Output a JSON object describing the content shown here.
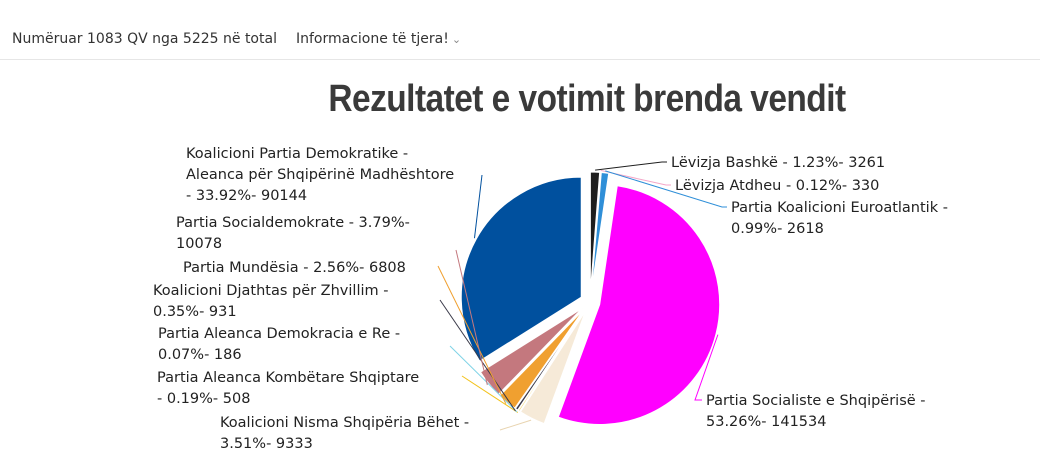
{
  "header": {
    "counted_text": "Numëruar 1083 QV nga 5225 në total",
    "more_info_label": "Informacione të tjera!",
    "more_info_icon": "chevron-down-icon"
  },
  "chart_data": {
    "type": "pie",
    "title": "Rezultatet e votimit brenda vendit",
    "slices": [
      {
        "name": "Lëvizja Bashkë",
        "percent": 1.23,
        "votes": 3261,
        "color": "#1e1e1e",
        "label": [
          "Lëvizja Bashkë - 1.23%- 3261"
        ]
      },
      {
        "name": "Lëvizja Atdheu",
        "percent": 0.12,
        "votes": 330,
        "color": "#f4a6c8",
        "label": [
          "Lëvizja Atdheu - 0.12%- 330"
        ]
      },
      {
        "name": "Partia Koalicioni Euroatlantik",
        "percent": 0.99,
        "votes": 2618,
        "color": "#2f8fd8",
        "label": [
          "Partia Koalicioni Euroatlantik -",
          "0.99%- 2618"
        ]
      },
      {
        "name": "Partia Socialiste e Shqipërisë",
        "percent": 53.26,
        "votes": 141534,
        "color": "#ff00ff",
        "label": [
          "Partia Socialiste e Shqipërisë -",
          "53.26%- 141534"
        ]
      },
      {
        "name": "Koalicioni Nisma Shqipëria Bëhet",
        "percent": 3.51,
        "votes": 9333,
        "color": "#f6ead8",
        "label": [
          "Koalicioni Nisma Shqipëria Bëhet -",
          "3.51%- 9333"
        ]
      },
      {
        "name": "Partia Aleanca Kombëtare Shqiptare",
        "percent": 0.19,
        "votes": 508,
        "color": "#f2c21b",
        "label": [
          "Partia Aleanca Kombëtare Shqiptare",
          "- 0.19%- 508"
        ]
      },
      {
        "name": "Partia Aleanca Demokracia e Re",
        "percent": 0.07,
        "votes": 186,
        "color": "#7fd3e6",
        "label": [
          "Partia Aleanca Demokracia e Re -",
          "0.07%- 186"
        ]
      },
      {
        "name": "Koalicioni Djathtas për Zhvillim",
        "percent": 0.35,
        "votes": 931,
        "color": "#3a3a4a",
        "label": [
          "Koalicioni Djathtas për Zhvillim -",
          "0.35%- 931"
        ]
      },
      {
        "name": "Partia Mundësia",
        "percent": 2.56,
        "votes": 6808,
        "color": "#f0a030",
        "label": [
          "Partia Mundësia - 2.56%- 6808"
        ]
      },
      {
        "name": "Partia Socialdemokrate",
        "percent": 3.79,
        "votes": 10078,
        "color": "#c4787e",
        "label": [
          "Partia Socialdemokrate - 3.79%-",
          "10078"
        ]
      },
      {
        "name": "Koalicioni Partia Demokratike - Aleanca për Shqipërinë Madhështore",
        "percent": 33.92,
        "votes": 90144,
        "color": "#00509e",
        "label": [
          "Koalicioni Partia Demokratike -",
          "Aleanca për Shqipërinë Madhështore",
          "- 33.92%- 90144"
        ]
      }
    ]
  }
}
